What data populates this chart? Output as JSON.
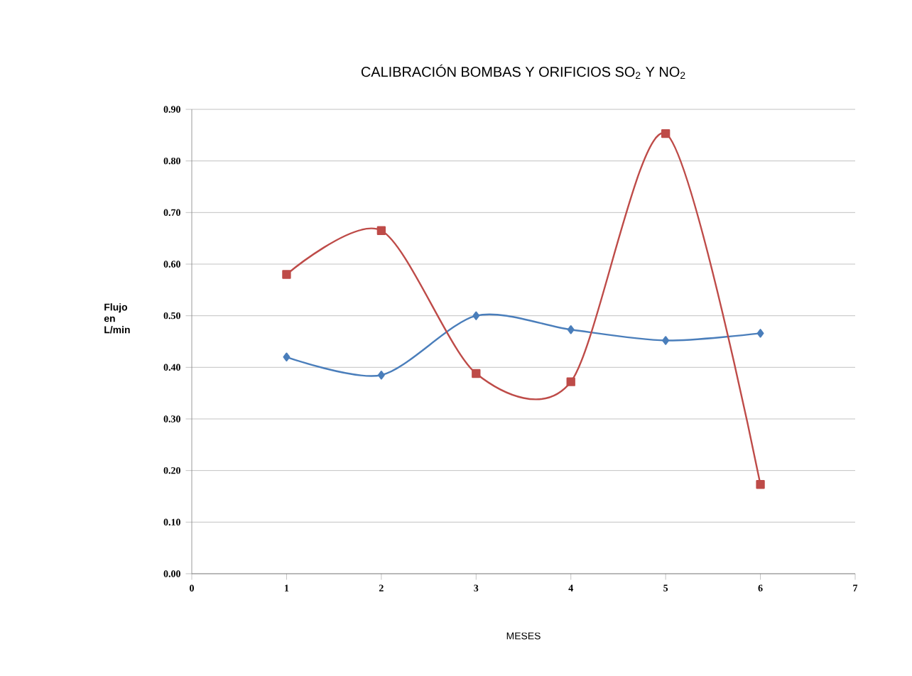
{
  "chart_data": {
    "type": "line",
    "title": "CALIBRACIÓN  BOMBAS Y ORIFICIOS SO$_{2}$ Y NO$_{2}$",
    "xlabel": "MESES",
    "ylabel": "Flujo en L/min",
    "x": [
      1,
      2,
      3,
      4,
      5,
      6
    ],
    "series": [
      {
        "color": "#4a7ebb",
        "marker": "diamond",
        "values": [
          0.42,
          0.385,
          0.5,
          0.473,
          0.452,
          0.466
        ]
      },
      {
        "color": "#be4b48",
        "marker": "square",
        "values": [
          0.58,
          0.665,
          0.388,
          0.372,
          0.853,
          0.173
        ]
      }
    ],
    "xlim": [
      0,
      7
    ],
    "xticks": [
      0,
      1,
      2,
      3,
      4,
      5,
      6,
      7
    ],
    "ylim": [
      0,
      0.9
    ],
    "yticks": [
      {
        "value": 0,
        "label": "0.00"
      },
      {
        "value": 0.1,
        "label": "0.10"
      },
      {
        "value": 0.2,
        "label": "0.20"
      },
      {
        "value": 0.3,
        "label": "0.30"
      },
      {
        "value": 0.4,
        "label": "0.40"
      },
      {
        "value": 0.5,
        "label": "0.50"
      },
      {
        "value": 0.6,
        "label": "0.60"
      },
      {
        "value": 0.7,
        "label": "0.70"
      },
      {
        "value": 0.8,
        "label": "0.80"
      },
      {
        "value": 0.9,
        "label": "0.90"
      }
    ],
    "grid": "y"
  }
}
